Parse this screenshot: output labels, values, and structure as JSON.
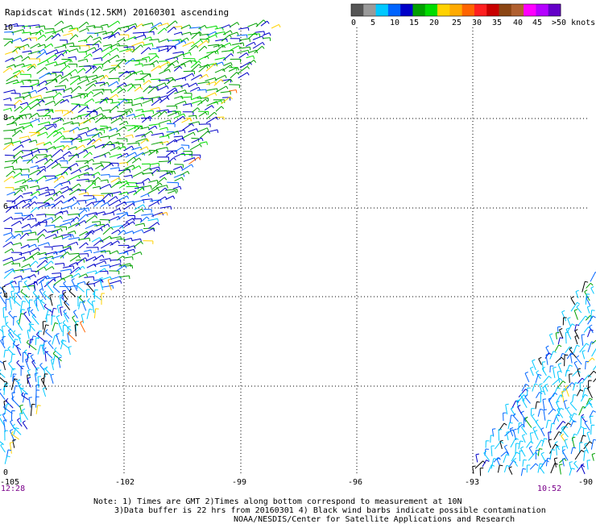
{
  "title": "Rapidscat Winds(12.5KM) 20160301 ascending",
  "legend": {
    "labels": [
      "0",
      "5",
      "10",
      "15",
      "20",
      "25",
      "30",
      "35",
      "40",
      "45",
      ">50 knots"
    ],
    "colors": [
      "#555555",
      "#9a9a9a",
      "#00c8ff",
      "#0064ff",
      "#0000c8",
      "#00a000",
      "#00dc00",
      "#ffd200",
      "#ffaa00",
      "#ff6400",
      "#ff2020",
      "#c80000",
      "#8b4513",
      "#b06030",
      "#ff00ff",
      "#b400ff",
      "#6400c8"
    ]
  },
  "map": {
    "lon_labels": [
      "-105",
      "-102",
      "-99",
      "-96",
      "-93",
      "-90"
    ],
    "lat_labels": [
      "0",
      "2",
      "4",
      "6",
      "8",
      "10"
    ],
    "times": [
      "12:28",
      "10:52"
    ]
  },
  "notes": {
    "line1": "Note: 1) Times are GMT 2)Times along bottom correspond to measurement at 10N",
    "line2": "3)Data buffer is 22 hrs from 20160301 4) Black wind barbs indicate possible contamination",
    "line3": "NOAA/NESDIS/Center for Satellite Applications and Research"
  }
}
